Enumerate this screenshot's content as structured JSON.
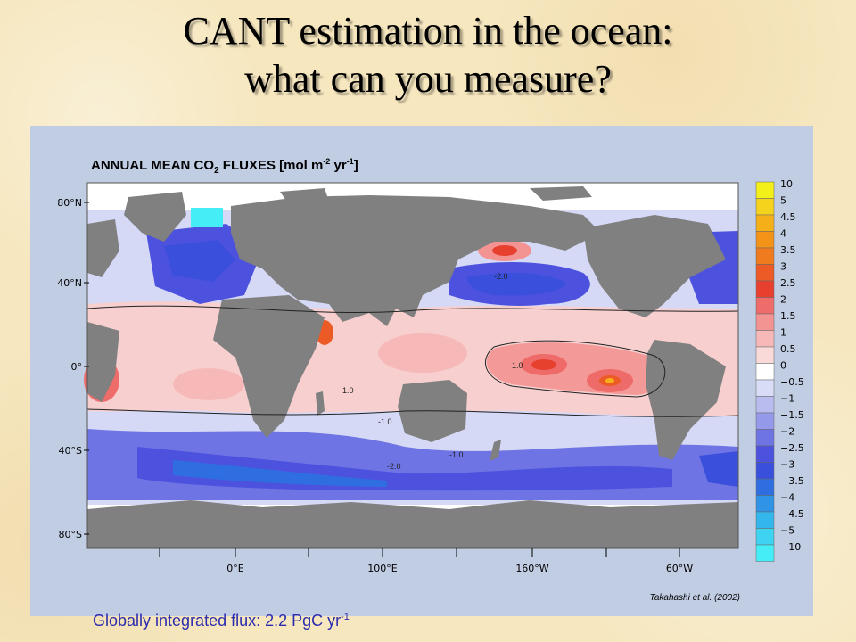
{
  "slide": {
    "title_line1": "CANT estimation in the ocean:",
    "title_line2": "what can you measure?",
    "caption_prefix": "Globally integrated flux: 2.2 PgC yr",
    "caption_exp": "-1"
  },
  "map": {
    "heading_main": "ANNUAL MEAN CO",
    "heading_sub": "2",
    "heading_units": " FLUXES [mol m",
    "heading_units_exp1": "-2",
    "heading_units_mid": " yr",
    "heading_units_exp2": "-1",
    "heading_units_end": "]",
    "lat_labels": [
      "80°N",
      "40°N",
      "0°",
      "40°S",
      "80°S"
    ],
    "lon_labels": [
      "0°E",
      "100°E",
      "160°W",
      "60°W"
    ],
    "contour_labels": [
      "-2.0",
      "1.0",
      "1.0",
      "-1.0",
      "-1.0",
      "-2.0"
    ],
    "credit": "Takahashi et al. (2002)"
  },
  "colorbar": {
    "labels": [
      "10",
      "5",
      "4.5",
      "4",
      "3.5",
      "3",
      "2.5",
      "2",
      "1.5",
      "1",
      "0.5",
      "0",
      "−0.5",
      "−1",
      "−1.5",
      "−2",
      "−2.5",
      "−3",
      "−3.5",
      "−4",
      "−4.5",
      "−5",
      "−10"
    ],
    "colors": [
      "#f2f018",
      "#f5d21c",
      "#f5b019",
      "#f39419",
      "#f07a1e",
      "#ec5a26",
      "#e8402f",
      "#ee6d6b",
      "#f39392",
      "#f6b9b8",
      "#f9dad9",
      "#ffffff",
      "#d9dcf6",
      "#b8bcef",
      "#9499ea",
      "#6f74e4",
      "#4d52de",
      "#3a4fdc",
      "#2f6ee0",
      "#2f93e6",
      "#33b6ec",
      "#3fd3f2",
      "#45eef7"
    ]
  }
}
